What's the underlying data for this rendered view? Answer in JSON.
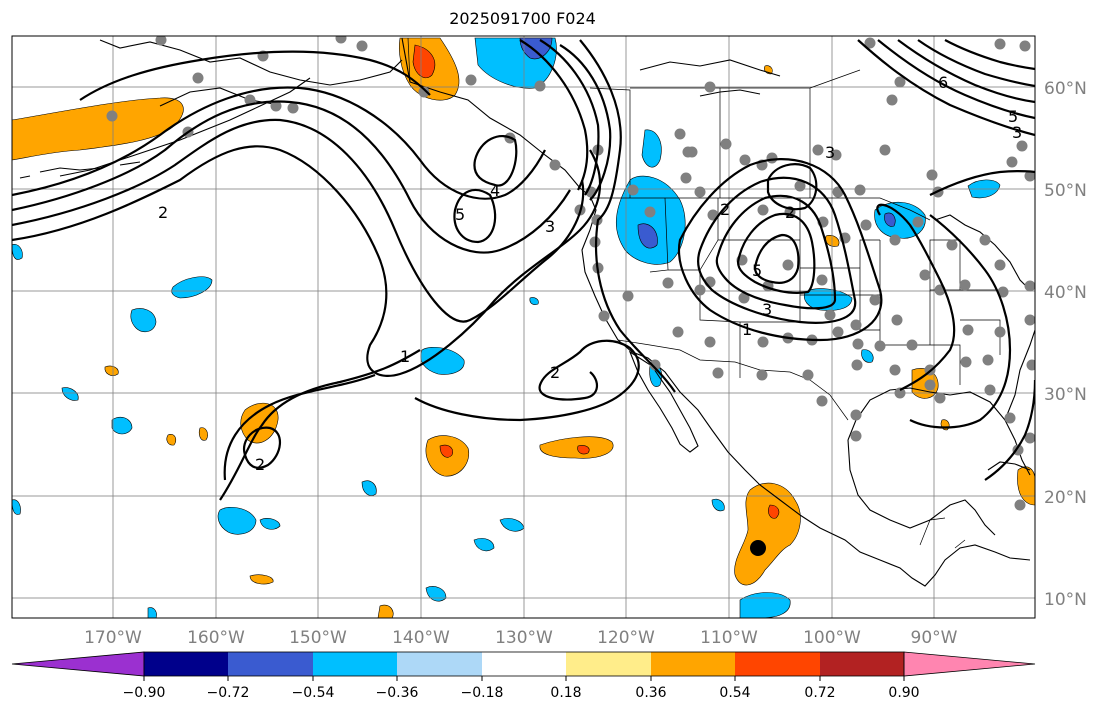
{
  "title": "2025091700 F024",
  "lat_labels": [
    "60°N",
    "50°N",
    "40°N",
    "30°N",
    "20°N",
    "10°N"
  ],
  "lon_labels": [
    "170°W",
    "160°W",
    "150°W",
    "140°W",
    "130°W",
    "120°W",
    "110°W",
    "100°W",
    "90°W"
  ],
  "contour_labels": [
    "1",
    "1",
    "2",
    "2",
    "2",
    "2",
    "2",
    "3",
    "3",
    "3",
    "4",
    "5",
    "5",
    "6",
    "5",
    "3"
  ],
  "colorbar": {
    "ticks": [
      "−0.90",
      "−0.72",
      "−0.54",
      "−0.36",
      "−0.18",
      "0.18",
      "0.36",
      "0.54",
      "0.72",
      "0.90"
    ],
    "colors": [
      "#9b30d0",
      "#00008b",
      "#3a5bd0",
      "#00bfff",
      "#add8f7",
      "#ffffff",
      "#ffed8a",
      "#ffa500",
      "#ff4500",
      "#b22222",
      "#ff85b0"
    ]
  },
  "colors": {
    "strong_negative": "#3a5bd0",
    "negative": "#00bfff",
    "positive": "#ffa500",
    "strong_positive": "#ff4500",
    "station_dot": "#808080",
    "marker": "#000000"
  }
}
